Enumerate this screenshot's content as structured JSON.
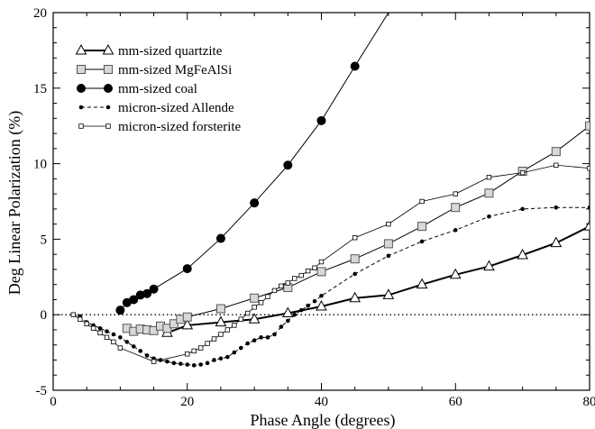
{
  "chart_data": {
    "type": "line",
    "xlabel": "Phase Angle (degrees)",
    "ylabel": "Deg Linear Polarization (%)",
    "xlim": [
      0,
      80
    ],
    "ylim": [
      -5,
      20
    ],
    "xticks": [
      0,
      20,
      40,
      60,
      80
    ],
    "yticks": [
      -5,
      0,
      5,
      10,
      15,
      20
    ],
    "reference_line": {
      "y": 0,
      "style": "dotted"
    },
    "grid": false,
    "legend_position": "top-left",
    "series": [
      {
        "name": "mm-sized quartzite",
        "marker": "triangle-open",
        "line": "solid-thick",
        "x": [
          17,
          20,
          25,
          30,
          35,
          40,
          45,
          50,
          55,
          60,
          65,
          70,
          75,
          80
        ],
        "y": [
          -1.2,
          -0.7,
          -0.5,
          -0.3,
          0.1,
          0.55,
          1.1,
          1.3,
          2.0,
          2.65,
          3.2,
          3.95,
          4.75,
          5.85
        ]
      },
      {
        "name": "mm-sized MgFeAlSi",
        "marker": "square-open-large",
        "line": "solid",
        "x": [
          11,
          12,
          13,
          14,
          15,
          16,
          17,
          18,
          19,
          20,
          25,
          30,
          35,
          40,
          45,
          50,
          55,
          60,
          65,
          70,
          75,
          80
        ],
        "y": [
          -0.9,
          -1.1,
          -0.95,
          -1.0,
          -1.05,
          -0.75,
          -0.9,
          -0.6,
          -0.3,
          -0.15,
          0.4,
          1.1,
          1.8,
          2.85,
          3.7,
          4.7,
          5.85,
          7.1,
          8.05,
          9.5,
          10.8,
          12.5
        ]
      },
      {
        "name": "mm-sized coal",
        "marker": "circle-filled-large",
        "line": "solid",
        "x": [
          10,
          11,
          12,
          13,
          14,
          15,
          20,
          25,
          30,
          35,
          40,
          45,
          50
        ],
        "y": [
          0.3,
          0.8,
          1.0,
          1.3,
          1.4,
          1.7,
          3.05,
          5.05,
          7.4,
          9.9,
          12.85,
          16.45,
          20.0
        ]
      },
      {
        "name": "micron-sized  Allende",
        "marker": "circle-filled-small",
        "line": "dashed",
        "x": [
          3,
          4,
          5,
          6,
          7,
          8,
          9,
          10,
          11,
          12,
          13,
          14,
          15,
          16,
          17,
          18,
          19,
          20,
          21,
          22,
          23,
          24,
          25,
          26,
          27,
          28,
          29,
          30,
          31,
          32,
          33,
          34,
          35,
          36,
          37,
          38,
          39,
          40,
          45,
          50,
          55,
          60,
          65,
          70,
          75,
          80
        ],
        "y": [
          0.0,
          -0.1,
          -0.5,
          -0.7,
          -0.9,
          -1.1,
          -1.3,
          -1.5,
          -1.8,
          -2.1,
          -2.4,
          -2.7,
          -2.9,
          -3.0,
          -3.1,
          -3.2,
          -3.25,
          -3.3,
          -3.35,
          -3.3,
          -3.2,
          -3.0,
          -2.9,
          -2.8,
          -2.5,
          -2.2,
          -1.9,
          -1.7,
          -1.5,
          -1.5,
          -1.3,
          -0.8,
          -0.4,
          0.0,
          0.3,
          0.6,
          0.9,
          1.25,
          2.7,
          3.9,
          4.85,
          5.6,
          6.5,
          7.0,
          7.1,
          7.1
        ]
      },
      {
        "name": "micron-sized forsterite",
        "marker": "square-open-small",
        "line": "solid-thin",
        "x": [
          3,
          4,
          5,
          6,
          7,
          8,
          9,
          10,
          15,
          20,
          21,
          22,
          23,
          24,
          25,
          26,
          27,
          28,
          29,
          30,
          31,
          32,
          33,
          34,
          35,
          36,
          37,
          38,
          39,
          40,
          45,
          50,
          55,
          60,
          65,
          70,
          75,
          80
        ],
        "y": [
          0.0,
          -0.3,
          -0.6,
          -0.9,
          -1.2,
          -1.5,
          -1.8,
          -2.2,
          -3.1,
          -2.6,
          -2.4,
          -2.2,
          -1.9,
          -1.6,
          -1.3,
          -1.0,
          -0.7,
          -0.3,
          0.1,
          0.5,
          0.8,
          1.2,
          1.6,
          1.9,
          2.1,
          2.4,
          2.6,
          2.9,
          3.1,
          3.5,
          5.1,
          6.0,
          7.5,
          8.0,
          9.1,
          9.4,
          9.9,
          9.7
        ]
      }
    ]
  }
}
